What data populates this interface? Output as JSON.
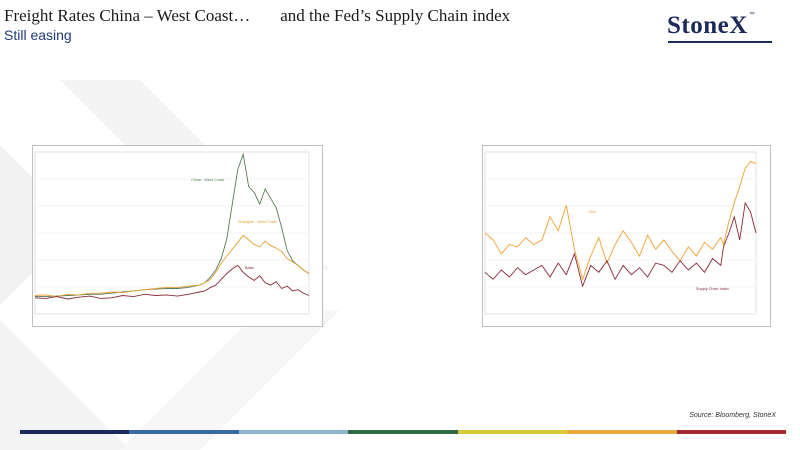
{
  "header": {
    "title_left": "Freight Rates China – West Coast…",
    "title_right": "and the Fed’s Supply Chain index",
    "subtitle": "Still easing"
  },
  "logo": {
    "text": "StoneX",
    "trademark": "™"
  },
  "source": "Source: Bloomberg, StoneX",
  "colors": {
    "title": "#1a1a1a",
    "subtitle": "#1f3a78",
    "logo": "#1b2a5a",
    "bottom_bar": [
      "#1b2a5a",
      "#3b6a9f",
      "#8fb4cf",
      "#2e6b45",
      "#d9c83a",
      "#e6a93a",
      "#a52a35"
    ]
  },
  "chart_data": [
    {
      "type": "line",
      "x_range": [
        0,
        100
      ],
      "ylim": [
        0,
        14000
      ],
      "series": [
        {
          "name": "China - West Coast",
          "color": "#5a7a5a",
          "x": [
            0,
            4,
            8,
            12,
            16,
            20,
            24,
            28,
            32,
            36,
            40,
            44,
            48,
            52,
            56,
            60,
            62,
            64,
            66,
            68,
            70,
            72,
            74,
            76,
            78,
            80,
            82,
            84,
            86,
            88,
            90,
            92,
            94,
            96,
            98,
            100
          ],
          "y": [
            1500,
            1500,
            1550,
            1600,
            1650,
            1700,
            1700,
            1800,
            1900,
            2000,
            2100,
            2150,
            2200,
            2200,
            2300,
            2500,
            2700,
            3200,
            3800,
            4800,
            6500,
            9500,
            12500,
            13800,
            11000,
            10500,
            9500,
            10800,
            10000,
            9200,
            7500,
            5500,
            4600,
            4200,
            3800,
            3500
          ]
        },
        {
          "name": "Shanghai - West Coast",
          "color": "#e6a030",
          "x": [
            0,
            4,
            8,
            12,
            16,
            20,
            24,
            28,
            32,
            36,
            40,
            44,
            48,
            52,
            56,
            60,
            62,
            64,
            66,
            68,
            70,
            72,
            74,
            76,
            78,
            80,
            82,
            84,
            86,
            88,
            90,
            92,
            94,
            96,
            98,
            100
          ],
          "y": [
            1600,
            1650,
            1500,
            1700,
            1650,
            1800,
            1800,
            1900,
            1850,
            2000,
            2100,
            2200,
            2300,
            2300,
            2400,
            2500,
            2700,
            3000,
            3600,
            4400,
            5000,
            5600,
            6200,
            6800,
            6400,
            6000,
            5800,
            6300,
            5900,
            5700,
            5400,
            4800,
            4500,
            4200,
            3800,
            3500
          ]
        },
        {
          "name": "Baltic",
          "color": "#8a2a3a",
          "x": [
            0,
            4,
            8,
            12,
            16,
            20,
            24,
            28,
            32,
            36,
            40,
            44,
            48,
            52,
            56,
            60,
            62,
            64,
            66,
            68,
            70,
            72,
            74,
            76,
            78,
            80,
            82,
            84,
            86,
            88,
            90,
            92,
            94,
            96,
            98,
            100
          ],
          "y": [
            1400,
            1350,
            1500,
            1300,
            1450,
            1550,
            1350,
            1400,
            1600,
            1500,
            1700,
            1600,
            1650,
            1550,
            1700,
            1900,
            2000,
            2300,
            2500,
            3000,
            3500,
            3900,
            4200,
            3600,
            3200,
            2900,
            3300,
            2700,
            2500,
            2800,
            2200,
            2400,
            2000,
            2100,
            1800,
            1600
          ]
        }
      ]
    },
    {
      "type": "line",
      "x_range": [
        0,
        100
      ],
      "ylim": [
        -2,
        5
      ],
      "series": [
        {
          "name": "ISM",
          "color": "#f0a030",
          "x": [
            0,
            3,
            6,
            9,
            12,
            15,
            18,
            21,
            24,
            27,
            30,
            33,
            36,
            39,
            42,
            45,
            48,
            51,
            54,
            57,
            60,
            63,
            66,
            69,
            72,
            75,
            78,
            81,
            84,
            87,
            88,
            90,
            92,
            94,
            96,
            98,
            100
          ],
          "y": [
            1.5,
            1.2,
            0.6,
            1.0,
            0.9,
            1.3,
            1.0,
            1.2,
            2.2,
            1.6,
            2.7,
            0.8,
            -0.5,
            0.5,
            1.3,
            0.2,
            1.0,
            1.6,
            1.1,
            0.5,
            1.4,
            0.8,
            1.2,
            0.7,
            0.3,
            0.9,
            0.5,
            1.1,
            0.8,
            1.3,
            1.0,
            2.0,
            2.8,
            3.5,
            4.3,
            4.6,
            4.5
          ]
        },
        {
          "name": "Supply Chain Index",
          "color": "#8a2a3a",
          "x": [
            0,
            3,
            6,
            9,
            12,
            15,
            18,
            21,
            24,
            27,
            30,
            33,
            36,
            39,
            42,
            45,
            48,
            51,
            54,
            57,
            60,
            63,
            66,
            69,
            72,
            75,
            78,
            81,
            84,
            87,
            88,
            90,
            92,
            94,
            96,
            98,
            100
          ],
          "y": [
            -0.2,
            -0.5,
            -0.1,
            -0.4,
            0.0,
            -0.3,
            -0.1,
            0.1,
            -0.4,
            0.2,
            -0.3,
            0.6,
            -0.8,
            0.1,
            -0.2,
            0.3,
            -0.5,
            0.1,
            -0.3,
            0.0,
            -0.4,
            0.2,
            0.1,
            -0.2,
            0.3,
            -0.1,
            0.2,
            -0.2,
            0.4,
            0.1,
            0.9,
            1.5,
            2.2,
            1.2,
            2.8,
            2.4,
            1.5
          ]
        }
      ]
    }
  ]
}
